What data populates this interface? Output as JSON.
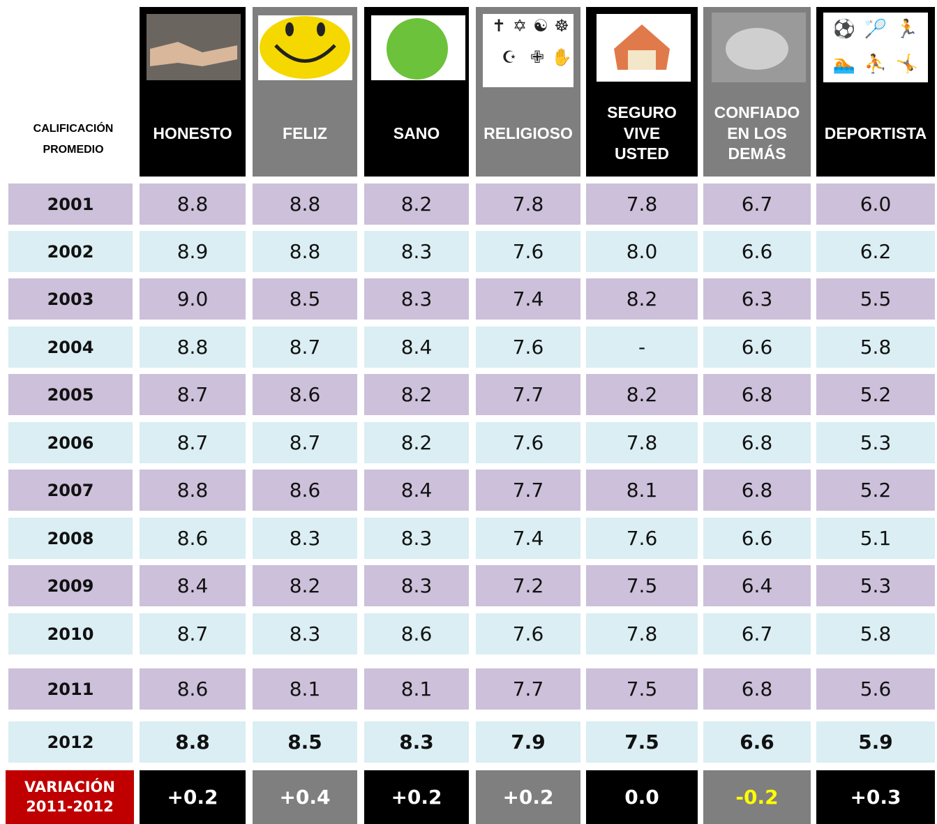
{
  "header": {
    "corner": "CALIFICACIÓN PROMEDIO",
    "columns": [
      "HONESTO",
      "FELIZ",
      "SANO",
      "RELIGIOSO",
      "SEGURO VIVE USTED",
      "CONFIADO EN LOS DEMÁS",
      "DEPORTISTA"
    ]
  },
  "table": {
    "rows": [
      [
        "2001",
        "8.8",
        "8.8",
        "8.2",
        "7.8",
        "7.8",
        "6.7",
        "6.0"
      ],
      [
        "2002",
        "8.9",
        "8.8",
        "8.3",
        "7.6",
        "8.0",
        "6.6",
        "6.2"
      ],
      [
        "2003",
        "9.0",
        "8.5",
        "8.3",
        "7.4",
        "8.2",
        "6.3",
        "5.5"
      ],
      [
        "2004",
        "8.8",
        "8.7",
        "8.4",
        "7.6",
        "-",
        "6.6",
        "5.8"
      ],
      [
        "2005",
        "8.7",
        "8.6",
        "8.2",
        "7.7",
        "8.2",
        "6.8",
        "5.2"
      ],
      [
        "2006",
        "8.7",
        "8.7",
        "8.2",
        "7.6",
        "7.8",
        "6.8",
        "5.3"
      ],
      [
        "2007",
        "8.8",
        "8.6",
        "8.4",
        "7.7",
        "8.1",
        "6.8",
        "5.2"
      ],
      [
        "2008",
        "8.6",
        "8.3",
        "8.3",
        "7.4",
        "7.6",
        "6.6",
        "5.1"
      ],
      [
        "2009",
        "8.4",
        "8.2",
        "8.3",
        "7.2",
        "7.5",
        "6.4",
        "5.3"
      ],
      [
        "2010",
        "8.7",
        "8.3",
        "8.6",
        "7.6",
        "7.8",
        "6.7",
        "5.8"
      ],
      [
        "2011",
        "8.6",
        "8.1",
        "8.1",
        "7.7",
        "7.5",
        "6.8",
        "5.6"
      ],
      [
        "2012",
        "8.8",
        "8.5",
        "8.3",
        "7.9",
        "7.5",
        "6.6",
        "5.9"
      ]
    ]
  },
  "footer": {
    "label": "VARIACIÓN 2011-2012",
    "values": [
      "+0.2",
      "+0.4",
      "+0.2",
      "+0.2",
      "0.0",
      "-0.2",
      "+0.3"
    ]
  }
}
